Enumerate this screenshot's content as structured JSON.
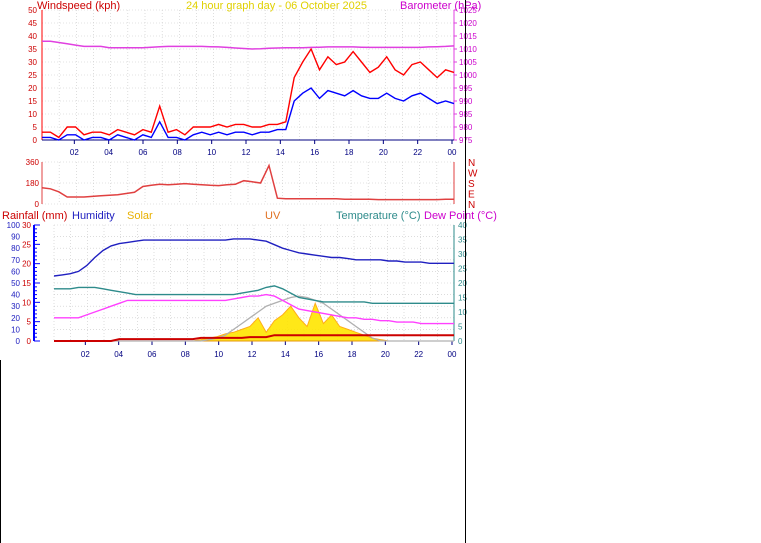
{
  "page": {
    "title": "24 hour graph day - 06 October 2025"
  },
  "colors": {
    "gust": "#ff0000",
    "wind": "#0000ff",
    "pressure": "#e040e0",
    "direction": "#e04040",
    "humidity": "#2020c0",
    "temperature": "#2e8b8b",
    "dewpoint": "#ff40ff",
    "rain": "#cc0000",
    "solar": "#ffa500",
    "solar_fill": "#ffe600",
    "uv": "#b0b0b0",
    "grid": "#c8c8c8",
    "axis": "#000080",
    "rain_axis": "#0000ff"
  },
  "chart_data": [
    {
      "type": "line",
      "name": "wind-panel",
      "left_label": "Windspeed (kph)",
      "right_label": "Barometer (hPa)",
      "left_ticks": [
        "0",
        "5",
        "10",
        "15",
        "20",
        "25",
        "30",
        "35",
        "40",
        "45",
        "50"
      ],
      "right_ticks": [
        "975",
        "980",
        "985",
        "990",
        "995",
        "1000",
        "1005",
        "1010",
        "1015",
        "1020",
        "1025"
      ],
      "ylim_left": [
        0,
        50
      ],
      "ylim_right": [
        975,
        1025
      ],
      "x_ticks": [
        "02",
        "04",
        "06",
        "08",
        "10",
        "12",
        "14",
        "16",
        "18",
        "20",
        "22",
        "00"
      ],
      "series": [
        {
          "key": "gust",
          "values": [
            3,
            3,
            1,
            5,
            5,
            2,
            3,
            3,
            2,
            4,
            3,
            2,
            4,
            3,
            13,
            3,
            4,
            2,
            5,
            5,
            5,
            6,
            5,
            6,
            6,
            5,
            5,
            6,
            6,
            7,
            24,
            30,
            35,
            27,
            32,
            29,
            30,
            34,
            30,
            26,
            28,
            32,
            27,
            25,
            29,
            30,
            27,
            24,
            27,
            26
          ]
        },
        {
          "key": "wind",
          "values": [
            1,
            1,
            0,
            2,
            2,
            0,
            1,
            1,
            0,
            2,
            1,
            0,
            2,
            1,
            7,
            1,
            1,
            0,
            2,
            3,
            2,
            3,
            2,
            3,
            3,
            2,
            3,
            3,
            4,
            4,
            15,
            18,
            20,
            16,
            19,
            18,
            17,
            19,
            17,
            16,
            16,
            18,
            16,
            15,
            17,
            18,
            16,
            14,
            15,
            14
          ]
        },
        {
          "key": "pressure",
          "values": [
            1013,
            1013,
            1012.5,
            1012,
            1011.5,
            1011,
            1011,
            1011,
            1010.5,
            1010.5,
            1010.5,
            1010.5,
            1010.5,
            1010.7,
            1010.9,
            1011,
            1011,
            1011,
            1011,
            1011,
            1010.9,
            1010.8,
            1010.6,
            1010.4,
            1010.2,
            1010,
            1010.1,
            1010.3,
            1010.4,
            1010.5,
            1010.5,
            1010.5,
            1010.6,
            1010.7,
            1010.8,
            1010.8,
            1010.8,
            1010.8,
            1010.7,
            1010.6,
            1010.6,
            1010.6,
            1010.6,
            1010.6,
            1010.6,
            1010.6,
            1010.8,
            1010.9,
            1011,
            1011.2
          ]
        }
      ]
    },
    {
      "type": "line",
      "name": "direction-panel",
      "left_ticks": [
        "0",
        "180",
        "360"
      ],
      "ylim": [
        0,
        360
      ],
      "compass_labels": [
        "N",
        "W",
        "S",
        "E",
        "N"
      ],
      "series": [
        {
          "key": "direction",
          "values": [
            140,
            130,
            105,
            60,
            60,
            60,
            65,
            70,
            75,
            80,
            90,
            100,
            150,
            160,
            170,
            165,
            170,
            175,
            170,
            165,
            160,
            158,
            165,
            170,
            200,
            190,
            180,
            330,
            50,
            45,
            45,
            45,
            45,
            45,
            45,
            45,
            40,
            40,
            40,
            40,
            38,
            38,
            38,
            38,
            38,
            38,
            38,
            38,
            40,
            40
          ]
        }
      ]
    },
    {
      "type": "line",
      "name": "temperature-panel",
      "legend": [
        "Rainfall (mm)",
        "Humidity",
        "Solar",
        "UV",
        "Temperature (°C)",
        "Dew Point (°C)"
      ],
      "humidity_ticks": [
        "0",
        "10",
        "20",
        "30",
        "40",
        "50",
        "60",
        "70",
        "80",
        "90",
        "100"
      ],
      "rain_ticks": [
        "0",
        "5",
        "10",
        "15",
        "20",
        "25",
        "30"
      ],
      "temp_ticks": [
        "0",
        "5",
        "10",
        "15",
        "20",
        "25",
        "30",
        "35",
        "40"
      ],
      "humidity_ylim": [
        0,
        100
      ],
      "rain_ylim": [
        0,
        30
      ],
      "temp_ylim": [
        0,
        40
      ],
      "x_ticks": [
        "02",
        "04",
        "06",
        "08",
        "10",
        "12",
        "14",
        "16",
        "18",
        "20",
        "22",
        "00"
      ],
      "series": [
        {
          "key": "humidity",
          "values": [
            56,
            57,
            58,
            60,
            65,
            72,
            78,
            82,
            84,
            85,
            86,
            87,
            87,
            87,
            87,
            87,
            87,
            87,
            87,
            87,
            87,
            87,
            88,
            88,
            88,
            87,
            86,
            83,
            80,
            78,
            76,
            75,
            74,
            73,
            72,
            72,
            71,
            70,
            70,
            70,
            70,
            69,
            69,
            68,
            68,
            68,
            67,
            67,
            67,
            67
          ]
        },
        {
          "key": "temperature",
          "values": [
            18,
            18,
            18,
            18.5,
            18.5,
            18.5,
            18,
            17.5,
            17,
            16.5,
            16,
            16,
            16,
            16,
            16,
            16,
            16,
            16,
            16,
            16,
            16,
            16,
            16,
            16.5,
            17,
            17.5,
            18.5,
            19,
            18,
            16.5,
            15,
            14.5,
            14,
            13.5,
            13.5,
            13.5,
            13.5,
            13.5,
            13.5,
            13,
            13,
            13,
            13,
            13,
            13,
            13,
            13,
            13,
            13,
            13
          ]
        },
        {
          "key": "dewpoint",
          "values": [
            8,
            8,
            8,
            8,
            9,
            10,
            11,
            12,
            13,
            14,
            14,
            14,
            14,
            14,
            14,
            14,
            14,
            14,
            14,
            14,
            14,
            14,
            14.5,
            15,
            15.5,
            15.5,
            16,
            15.5,
            14,
            12.5,
            11,
            10.5,
            10,
            9.5,
            9,
            8.5,
            8,
            8,
            7.5,
            7.5,
            7,
            7,
            6.5,
            6.5,
            6.5,
            6,
            6,
            6,
            6,
            6
          ]
        },
        {
          "key": "rain",
          "values": [
            0,
            0,
            0,
            0,
            0,
            0,
            0,
            0,
            0.5,
            0.5,
            0.5,
            0.5,
            0.5,
            0.5,
            0.5,
            0.5,
            0.5,
            0.5,
            0.8,
            0.8,
            0.8,
            0.8,
            0.8,
            0.8,
            1,
            1,
            1,
            1.5,
            1.5,
            1.5,
            1.5,
            1.5,
            1.5,
            1.5,
            1.5,
            1.5,
            1.5,
            1.5,
            1.5,
            1.5,
            1.5,
            1.5,
            1.5,
            1.5,
            1.5,
            1.5,
            1.5,
            1.5,
            1.5,
            1.5
          ]
        },
        {
          "key": "solar",
          "values": [
            0,
            0,
            0,
            0,
            0,
            0,
            0,
            0,
            0,
            0,
            0,
            0,
            0,
            0,
            0,
            0,
            0,
            0,
            0.5,
            1,
            1.5,
            2.5,
            3,
            4,
            5,
            8,
            3,
            7,
            9,
            12,
            8,
            5,
            13,
            6,
            9,
            5,
            4,
            3,
            2,
            1,
            0.5,
            0,
            0,
            0,
            0,
            0,
            0,
            0,
            0,
            0
          ]
        },
        {
          "key": "uv",
          "values": [
            0,
            0,
            0,
            0,
            0,
            0,
            0,
            0,
            0,
            0,
            0,
            0,
            0,
            0,
            0,
            0,
            0,
            0,
            0,
            0.5,
            1,
            2,
            4,
            6,
            8,
            10,
            12,
            13,
            14,
            15,
            15.5,
            15,
            14,
            13,
            11,
            9,
            7,
            5,
            3,
            1,
            0,
            0,
            0,
            0,
            0,
            0,
            0,
            0,
            0,
            0
          ]
        }
      ]
    }
  ]
}
